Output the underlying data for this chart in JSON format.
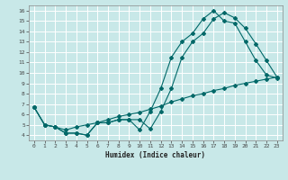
{
  "xlabel": "Humidex (Indice chaleur)",
  "bg_color": "#c8e8e8",
  "grid_color": "#ffffff",
  "line_color": "#006868",
  "xlim": [
    -0.5,
    23.5
  ],
  "ylim": [
    3.5,
    16.5
  ],
  "xticks": [
    0,
    1,
    2,
    3,
    4,
    5,
    6,
    7,
    8,
    9,
    10,
    11,
    12,
    13,
    14,
    15,
    16,
    17,
    18,
    19,
    20,
    21,
    22,
    23
  ],
  "yticks": [
    4,
    5,
    6,
    7,
    8,
    9,
    10,
    11,
    12,
    13,
    14,
    15,
    16
  ],
  "line1_x": [
    0,
    1,
    2,
    3,
    4,
    5,
    6,
    7,
    8,
    9,
    10,
    11,
    12,
    13,
    14,
    15,
    16,
    17,
    18,
    19,
    20,
    21,
    22,
    23
  ],
  "line1_y": [
    6.7,
    5.0,
    4.8,
    4.2,
    4.2,
    4.0,
    5.2,
    5.2,
    5.5,
    5.5,
    5.5,
    4.6,
    6.3,
    8.5,
    11.5,
    13.0,
    13.8,
    15.2,
    15.8,
    15.3,
    14.3,
    12.8,
    11.2,
    9.6
  ],
  "line2_x": [
    0,
    1,
    2,
    3,
    4,
    5,
    6,
    7,
    8,
    9,
    10,
    11,
    12,
    13,
    14,
    15,
    16,
    17,
    18,
    19,
    20,
    21,
    22,
    23
  ],
  "line2_y": [
    6.7,
    5.0,
    4.8,
    4.2,
    4.2,
    4.0,
    5.2,
    5.2,
    5.5,
    5.5,
    4.5,
    6.3,
    8.5,
    11.5,
    13.0,
    13.8,
    15.2,
    16.0,
    15.0,
    14.8,
    13.0,
    11.2,
    9.8,
    9.5
  ],
  "line3_x": [
    0,
    1,
    2,
    3,
    4,
    5,
    6,
    7,
    8,
    9,
    10,
    11,
    12,
    13,
    14,
    15,
    16,
    17,
    18,
    19,
    20,
    21,
    22,
    23
  ],
  "line3_y": [
    6.7,
    5.0,
    4.8,
    4.5,
    4.8,
    5.0,
    5.2,
    5.5,
    5.8,
    6.0,
    6.2,
    6.5,
    6.8,
    7.2,
    7.5,
    7.8,
    8.0,
    8.3,
    8.5,
    8.8,
    9.0,
    9.2,
    9.4,
    9.6
  ],
  "tick_fontsize": 4.5,
  "xlabel_fontsize": 5.5,
  "marker_size": 2.0,
  "line_width": 0.8
}
